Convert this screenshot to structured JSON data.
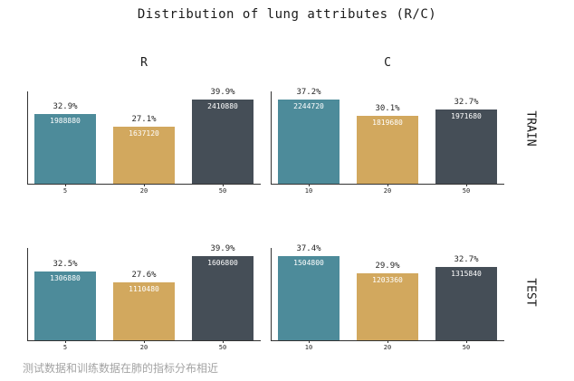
{
  "title": "Distribution of lung attributes (R/C)",
  "caption": "测试数据和训练数据在肺的指标分布相近",
  "col_titles": [
    "R",
    "C"
  ],
  "row_labels": [
    "TRAIN",
    "TEST"
  ],
  "colors": {
    "bar_palette": [
      "#4d8b9a",
      "#d2a85e",
      "#454e57"
    ],
    "axis": "#333333",
    "pct_label": "#262626",
    "value_label": "#ffffff",
    "caption": "#a3a3a3",
    "title": "#1a1a1a"
  },
  "chart_data": [
    {
      "type": "bar",
      "row": "TRAIN",
      "col": "R",
      "categories": [
        "5",
        "20",
        "50"
      ],
      "values": [
        1988880,
        1637120,
        2410880
      ],
      "pct_labels": [
        "32.9%",
        "27.1%",
        "39.9%"
      ],
      "ylim": [
        0,
        2545000
      ],
      "grid": false,
      "legend": "none"
    },
    {
      "type": "bar",
      "row": "TRAIN",
      "col": "C",
      "categories": [
        "10",
        "20",
        "50"
      ],
      "values": [
        2244720,
        1819680,
        1971680
      ],
      "pct_labels": [
        "37.2%",
        "30.1%",
        "32.7%"
      ],
      "ylim": [
        0,
        2370000
      ],
      "grid": false,
      "legend": "none"
    },
    {
      "type": "bar",
      "row": "TEST",
      "col": "R",
      "categories": [
        "5",
        "20",
        "50"
      ],
      "values": [
        1306880,
        1110480,
        1606800
      ],
      "pct_labels": [
        "32.5%",
        "27.6%",
        "39.9%"
      ],
      "ylim": [
        0,
        1696000
      ],
      "grid": false,
      "legend": "none"
    },
    {
      "type": "bar",
      "row": "TEST",
      "col": "C",
      "categories": [
        "10",
        "20",
        "50"
      ],
      "values": [
        1504800,
        1203360,
        1315840
      ],
      "pct_labels": [
        "37.4%",
        "29.9%",
        "32.7%"
      ],
      "ylim": [
        0,
        1589000
      ],
      "grid": false,
      "legend": "none"
    }
  ]
}
